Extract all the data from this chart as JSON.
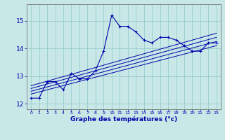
{
  "title": "",
  "xlabel": "Graphe des températures (°c)",
  "xlim": [
    -0.5,
    23.5
  ],
  "ylim": [
    11.8,
    15.6
  ],
  "yticks": [
    12,
    13,
    14,
    15
  ],
  "xticks": [
    0,
    1,
    2,
    3,
    4,
    5,
    6,
    7,
    8,
    9,
    10,
    11,
    12,
    13,
    14,
    15,
    16,
    17,
    18,
    19,
    20,
    21,
    22,
    23
  ],
  "background_color": "#c8e8e8",
  "line_color": "#0000aa",
  "grid_color": "#99cccc",
  "temp_data": {
    "x": [
      0,
      1,
      2,
      3,
      4,
      5,
      6,
      7,
      8,
      9,
      10,
      11,
      12,
      13,
      14,
      15,
      16,
      17,
      18,
      19,
      20,
      21,
      22,
      23
    ],
    "y": [
      12.2,
      12.2,
      12.8,
      12.8,
      12.5,
      13.1,
      12.9,
      12.9,
      13.2,
      13.9,
      15.2,
      14.8,
      14.8,
      14.6,
      14.3,
      14.2,
      14.4,
      14.4,
      14.3,
      14.1,
      13.9,
      13.9,
      14.2,
      14.2
    ]
  },
  "regression_lines": [
    {
      "x": [
        0,
        23
      ],
      "y": [
        12.65,
        14.55
      ]
    },
    {
      "x": [
        0,
        23
      ],
      "y": [
        12.55,
        14.4
      ]
    },
    {
      "x": [
        0,
        23
      ],
      "y": [
        12.45,
        14.25
      ]
    },
    {
      "x": [
        0,
        23
      ],
      "y": [
        12.35,
        14.1
      ]
    }
  ]
}
